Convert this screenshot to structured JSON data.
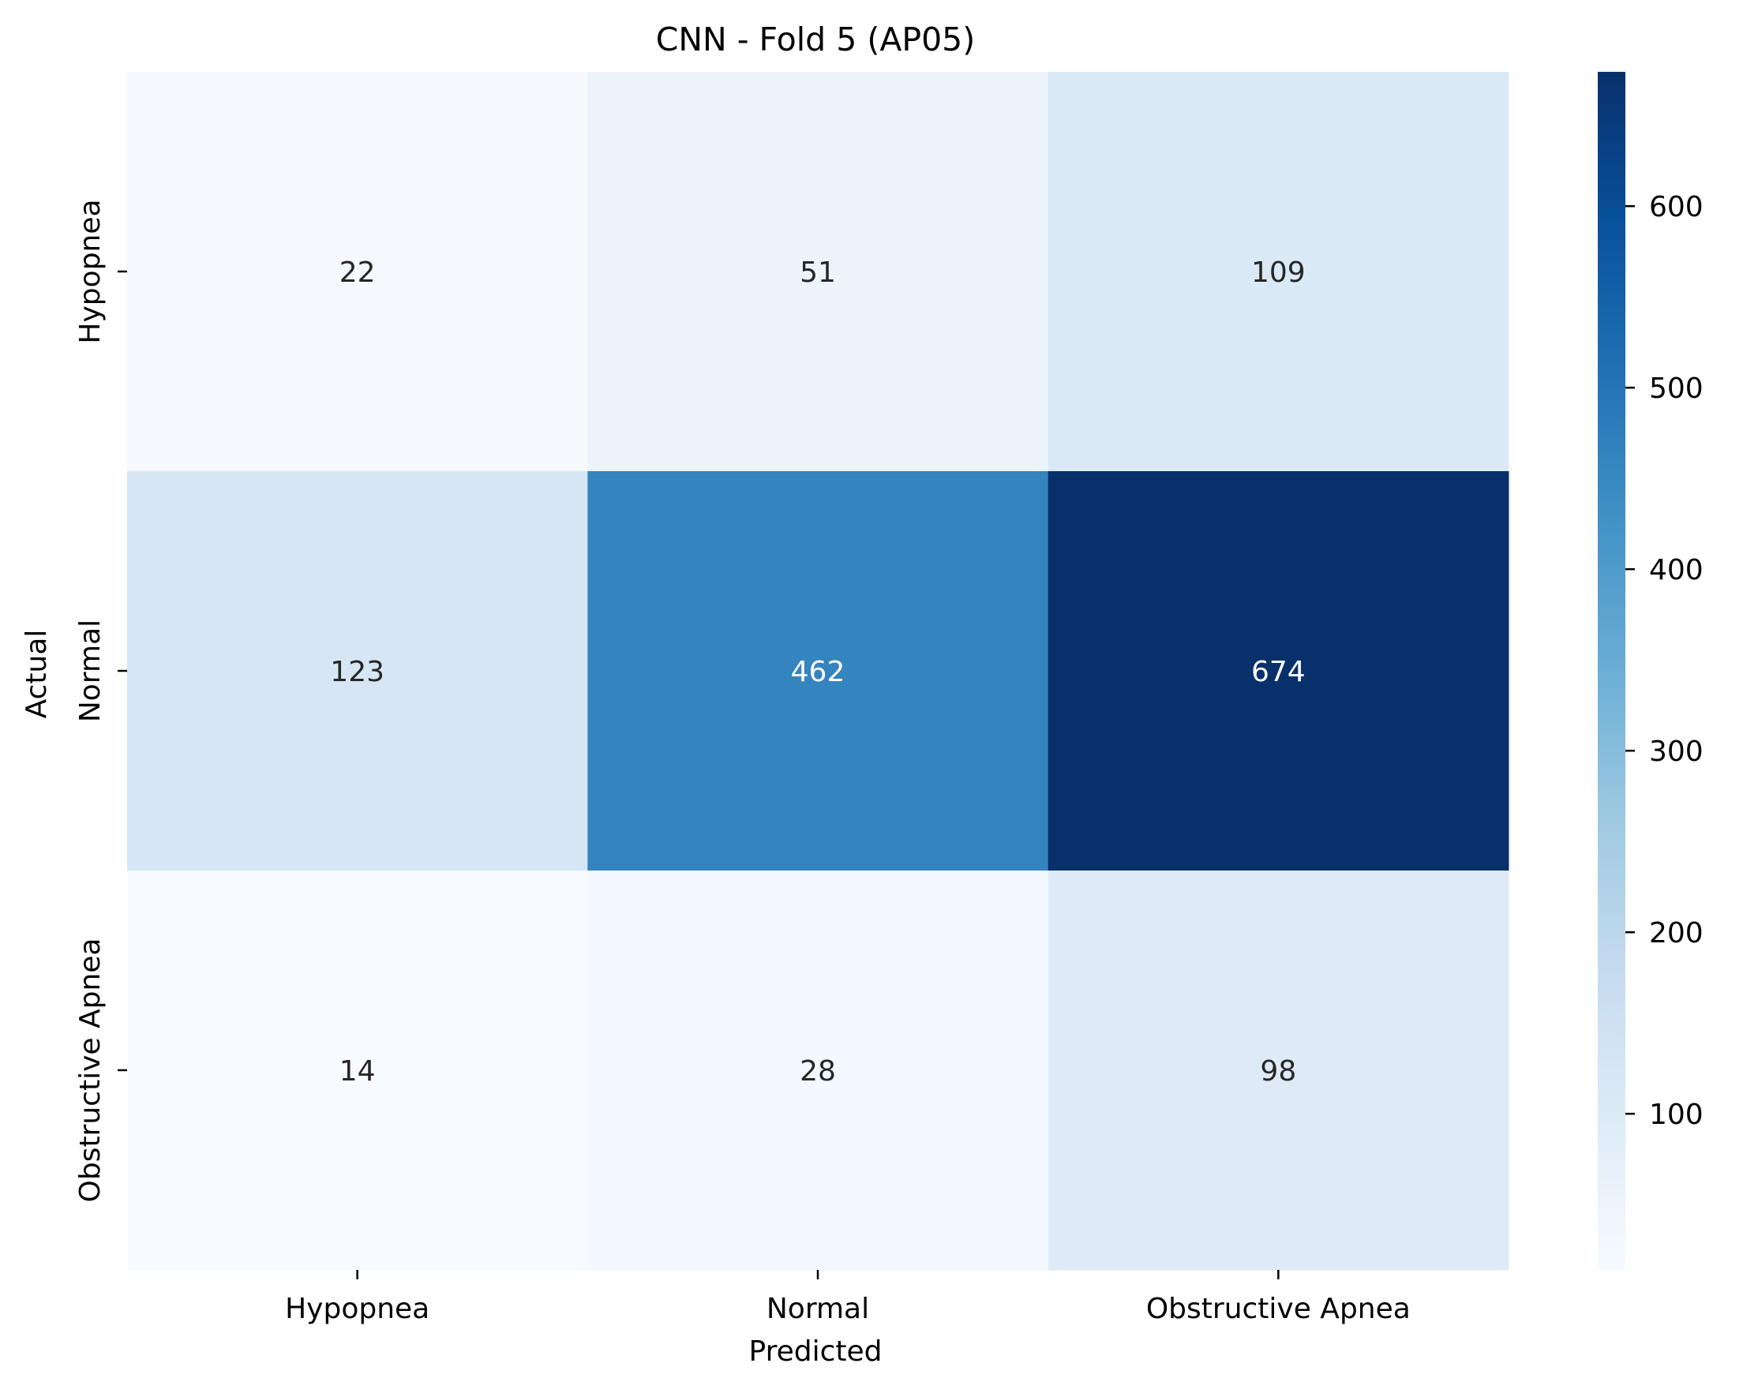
{
  "chart_data": {
    "type": "heatmap",
    "title": "CNN - Fold 5 (AP05)",
    "xlabel": "Predicted",
    "ylabel": "Actual",
    "x_categories": [
      "Hypopnea",
      "Normal",
      "Obstructive Apnea"
    ],
    "y_categories": [
      "Hypopnea",
      "Normal",
      "Obstructive Apnea"
    ],
    "values": [
      [
        22,
        51,
        109
      ],
      [
        123,
        462,
        674
      ],
      [
        14,
        28,
        98
      ]
    ],
    "colormap": "Blues",
    "color_range": [
      14,
      674
    ],
    "colorbar_ticks": [
      100,
      200,
      300,
      400,
      500,
      600
    ],
    "annotation_dark_color": "#262626",
    "annotation_light_color": "#ffffff"
  }
}
